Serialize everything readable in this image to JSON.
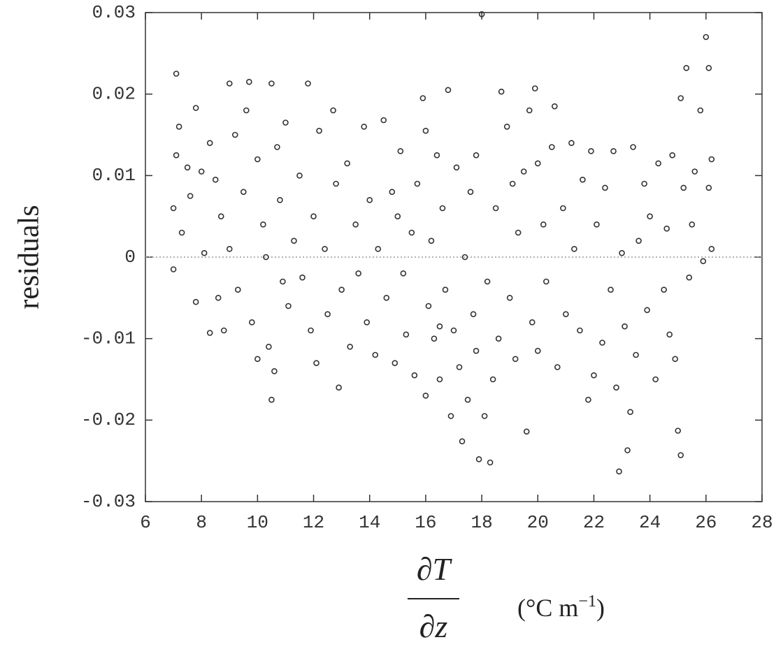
{
  "chart_data": {
    "type": "scatter",
    "y_label": "residuals",
    "x_label": {
      "numerator": "∂T",
      "denominator": "∂z",
      "unit": "(°C m",
      "unit_exponent": "−1",
      "unit_close": ")"
    },
    "color": "#333333",
    "xlim": [
      6,
      28
    ],
    "xticks": [
      6,
      8,
      10,
      12,
      14,
      16,
      18,
      20,
      22,
      24,
      26,
      28
    ],
    "ylim": [
      -0.03,
      0.03
    ],
    "yticks": [
      -0.03,
      -0.02,
      -0.01,
      0,
      0.01,
      0.02,
      0.03
    ],
    "reference_line": 0,
    "x": [
      7.1,
      7.2,
      7.1,
      7.0,
      7.0,
      7.3,
      7.5,
      7.6,
      7.8,
      7.8,
      8.0,
      8.1,
      8.3,
      8.3,
      8.5,
      8.6,
      8.7,
      8.8,
      9.0,
      9.0,
      9.2,
      9.3,
      9.5,
      9.6,
      9.7,
      9.8,
      10.0,
      10.0,
      10.2,
      10.3,
      10.4,
      10.5,
      10.5,
      10.6,
      10.7,
      10.8,
      10.9,
      11.0,
      11.1,
      11.3,
      11.5,
      11.6,
      11.8,
      11.9,
      12.0,
      12.1,
      12.2,
      12.4,
      12.5,
      12.7,
      12.8,
      12.9,
      13.0,
      13.2,
      13.3,
      13.5,
      13.6,
      13.8,
      13.9,
      14.0,
      14.2,
      14.3,
      14.5,
      14.6,
      14.8,
      14.9,
      15.0,
      15.1,
      15.2,
      15.3,
      15.5,
      15.6,
      15.7,
      15.9,
      16.0,
      16.0,
      16.1,
      16.2,
      16.3,
      16.4,
      16.5,
      16.6,
      16.7,
      16.8,
      16.9,
      17.0,
      17.1,
      17.2,
      17.3,
      17.4,
      17.5,
      17.6,
      17.7,
      17.8,
      17.9,
      18.0,
      18.1,
      18.2,
      18.3,
      18.4,
      18.5,
      18.6,
      18.7,
      18.9,
      19.0,
      19.1,
      19.2,
      19.3,
      19.5,
      19.6,
      19.7,
      19.8,
      19.9,
      20.0,
      20.0,
      20.2,
      20.3,
      20.5,
      20.6,
      20.7,
      20.9,
      21.0,
      21.2,
      21.3,
      21.5,
      21.6,
      21.8,
      21.9,
      22.0,
      22.1,
      22.3,
      22.4,
      22.6,
      22.7,
      22.8,
      22.9,
      23.0,
      23.1,
      23.2,
      23.3,
      23.4,
      23.5,
      23.6,
      23.8,
      23.9,
      24.0,
      24.2,
      24.3,
      24.5,
      24.6,
      24.7,
      24.8,
      24.9,
      25.0,
      25.1,
      25.1,
      25.2,
      25.3,
      25.4,
      25.5,
      25.6,
      25.8,
      25.9,
      26.0,
      26.1,
      26.1,
      26.2,
      26.2,
      16.5,
      17.8
    ],
    "values": [
      0.0225,
      0.016,
      0.0125,
      0.006,
      -0.0015,
      0.003,
      0.011,
      0.0075,
      0.0183,
      -0.0055,
      0.0105,
      0.0005,
      -0.0093,
      0.014,
      0.0095,
      -0.005,
      0.005,
      -0.009,
      0.0213,
      0.001,
      0.015,
      -0.004,
      0.008,
      0.018,
      0.0215,
      -0.008,
      0.012,
      -0.0125,
      0.004,
      0.0,
      -0.011,
      0.0213,
      -0.0175,
      -0.014,
      0.0135,
      0.007,
      -0.003,
      0.0165,
      -0.006,
      0.002,
      0.01,
      -0.0025,
      0.0213,
      -0.009,
      0.005,
      -0.013,
      0.0155,
      0.001,
      -0.007,
      0.018,
      0.009,
      -0.016,
      -0.004,
      0.0115,
      -0.011,
      0.004,
      -0.002,
      0.016,
      -0.008,
      0.007,
      -0.012,
      0.001,
      0.0168,
      -0.005,
      0.008,
      -0.013,
      0.005,
      0.013,
      -0.002,
      -0.0095,
      0.003,
      -0.0145,
      0.009,
      0.0195,
      -0.017,
      0.0155,
      -0.006,
      0.002,
      -0.01,
      0.0125,
      -0.015,
      0.006,
      -0.004,
      0.0205,
      -0.0195,
      -0.009,
      0.011,
      -0.0135,
      -0.0226,
      0.0,
      -0.0175,
      0.008,
      -0.007,
      0.0125,
      -0.0248,
      0.0298,
      -0.0195,
      -0.003,
      -0.0252,
      -0.015,
      0.006,
      -0.01,
      0.0203,
      0.016,
      -0.005,
      0.009,
      -0.0125,
      0.003,
      0.0105,
      -0.0214,
      0.018,
      -0.008,
      0.0207,
      0.0115,
      -0.0115,
      0.004,
      -0.003,
      0.0135,
      0.0185,
      -0.0135,
      0.006,
      -0.007,
      0.014,
      0.001,
      -0.009,
      0.0095,
      -0.0175,
      0.013,
      -0.0145,
      0.004,
      -0.0105,
      0.0085,
      -0.004,
      0.013,
      -0.016,
      -0.0263,
      0.0005,
      -0.0085,
      -0.0237,
      -0.019,
      0.0135,
      -0.012,
      0.002,
      0.009,
      -0.0065,
      0.005,
      -0.015,
      0.0115,
      -0.004,
      0.0035,
      -0.0095,
      0.0125,
      -0.0125,
      -0.0213,
      -0.0243,
      0.0195,
      0.0085,
      0.0232,
      -0.0025,
      0.004,
      0.0105,
      0.018,
      -0.0005,
      0.027,
      0.0232,
      0.0085,
      0.001,
      0.012,
      -0.0085,
      -0.0115
    ]
  }
}
